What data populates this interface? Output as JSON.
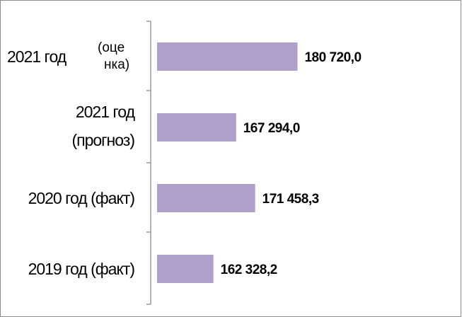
{
  "chart_data": {
    "type": "hbar",
    "categories": [
      [
        "2021 год",
        "(оце",
        "нка)"
      ],
      [
        "2021 год",
        "(прогноз)"
      ],
      [
        "2020 год (факт)"
      ],
      [
        "2019 год (факт)"
      ]
    ],
    "values": [
      180720.0,
      167294.0,
      171458.3,
      162328.2
    ],
    "value_labels": [
      "180 720,0",
      "167 294,0",
      "171 458,3",
      "162 328,2"
    ],
    "color": "#b09fcb",
    "xlim": [
      150000,
      215000
    ]
  }
}
